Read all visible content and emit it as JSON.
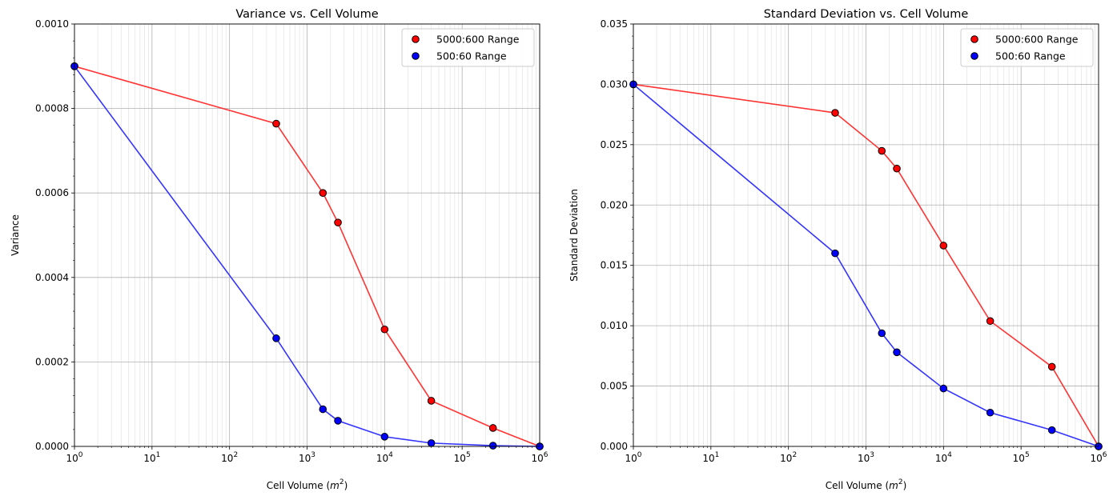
{
  "chart_data": [
    {
      "type": "line",
      "title": "Variance vs. Cell Volume",
      "xlabel": "Cell Volume (m^2)",
      "xlabel_main": "Cell Volume (",
      "xlabel_var": "m",
      "xlabel_exp": "2",
      "xlabel_end": ")",
      "ylabel": "Variance",
      "xscale": "log",
      "xlim": [
        1,
        1000000
      ],
      "ylim": [
        0,
        0.001
      ],
      "yticks": [
        0,
        0.0002,
        0.0004,
        0.0006,
        0.0008,
        0.001
      ],
      "ytick_labels": [
        "0.0000",
        "0.0002",
        "0.0004",
        "0.0006",
        "0.0008",
        "0.0010"
      ],
      "xtick_exponents": [
        "0",
        "1",
        "2",
        "3",
        "4",
        "5",
        "6"
      ],
      "grid": true,
      "legend_position": "top-right",
      "x": [
        1,
        400,
        1600,
        2500,
        10000,
        40000,
        250000,
        1000000
      ],
      "series": [
        {
          "name": "5000:600 Range",
          "color": "#ff0000",
          "line_color": "#ff3333",
          "values": [
            0.0009,
            0.000764,
            0.0006,
            0.00053,
            0.000277,
            0.000108,
            4.36e-05,
            0
          ]
        },
        {
          "name": "500:60 Range",
          "color": "#0000ff",
          "line_color": "#3333ff",
          "values": [
            0.0009,
            0.000256,
            8.8e-05,
            6.08e-05,
            2.3e-05,
            7.8e-06,
            1.8e-06,
            0
          ]
        }
      ]
    },
    {
      "type": "line",
      "title": "Standard Deviation vs. Cell Volume",
      "xlabel": "Cell Volume (m^2)",
      "xlabel_main": "Cell Volume (",
      "xlabel_var": "m",
      "xlabel_exp": "2",
      "xlabel_end": ")",
      "ylabel": "Standard Deviation",
      "xscale": "log",
      "xlim": [
        1,
        1000000
      ],
      "ylim": [
        0,
        0.035
      ],
      "yticks": [
        0,
        0.005,
        0.01,
        0.015,
        0.02,
        0.025,
        0.03,
        0.035
      ],
      "ytick_labels": [
        "0.000",
        "0.005",
        "0.010",
        "0.015",
        "0.020",
        "0.025",
        "0.030",
        "0.035"
      ],
      "xtick_exponents": [
        "0",
        "1",
        "2",
        "3",
        "4",
        "5",
        "6"
      ],
      "grid": true,
      "legend_position": "top-right",
      "x": [
        1,
        400,
        1600,
        2500,
        10000,
        40000,
        250000,
        1000000
      ],
      "series": [
        {
          "name": "5000:600 Range",
          "color": "#ff0000",
          "line_color": "#ff3333",
          "values": [
            0.03,
            0.02764,
            0.02449,
            0.02302,
            0.01664,
            0.01039,
            0.0066,
            0
          ]
        },
        {
          "name": "500:60 Range",
          "color": "#0000ff",
          "line_color": "#3333ff",
          "values": [
            0.03,
            0.016,
            0.00938,
            0.0078,
            0.0048,
            0.0028,
            0.00135,
            0
          ]
        }
      ]
    }
  ]
}
